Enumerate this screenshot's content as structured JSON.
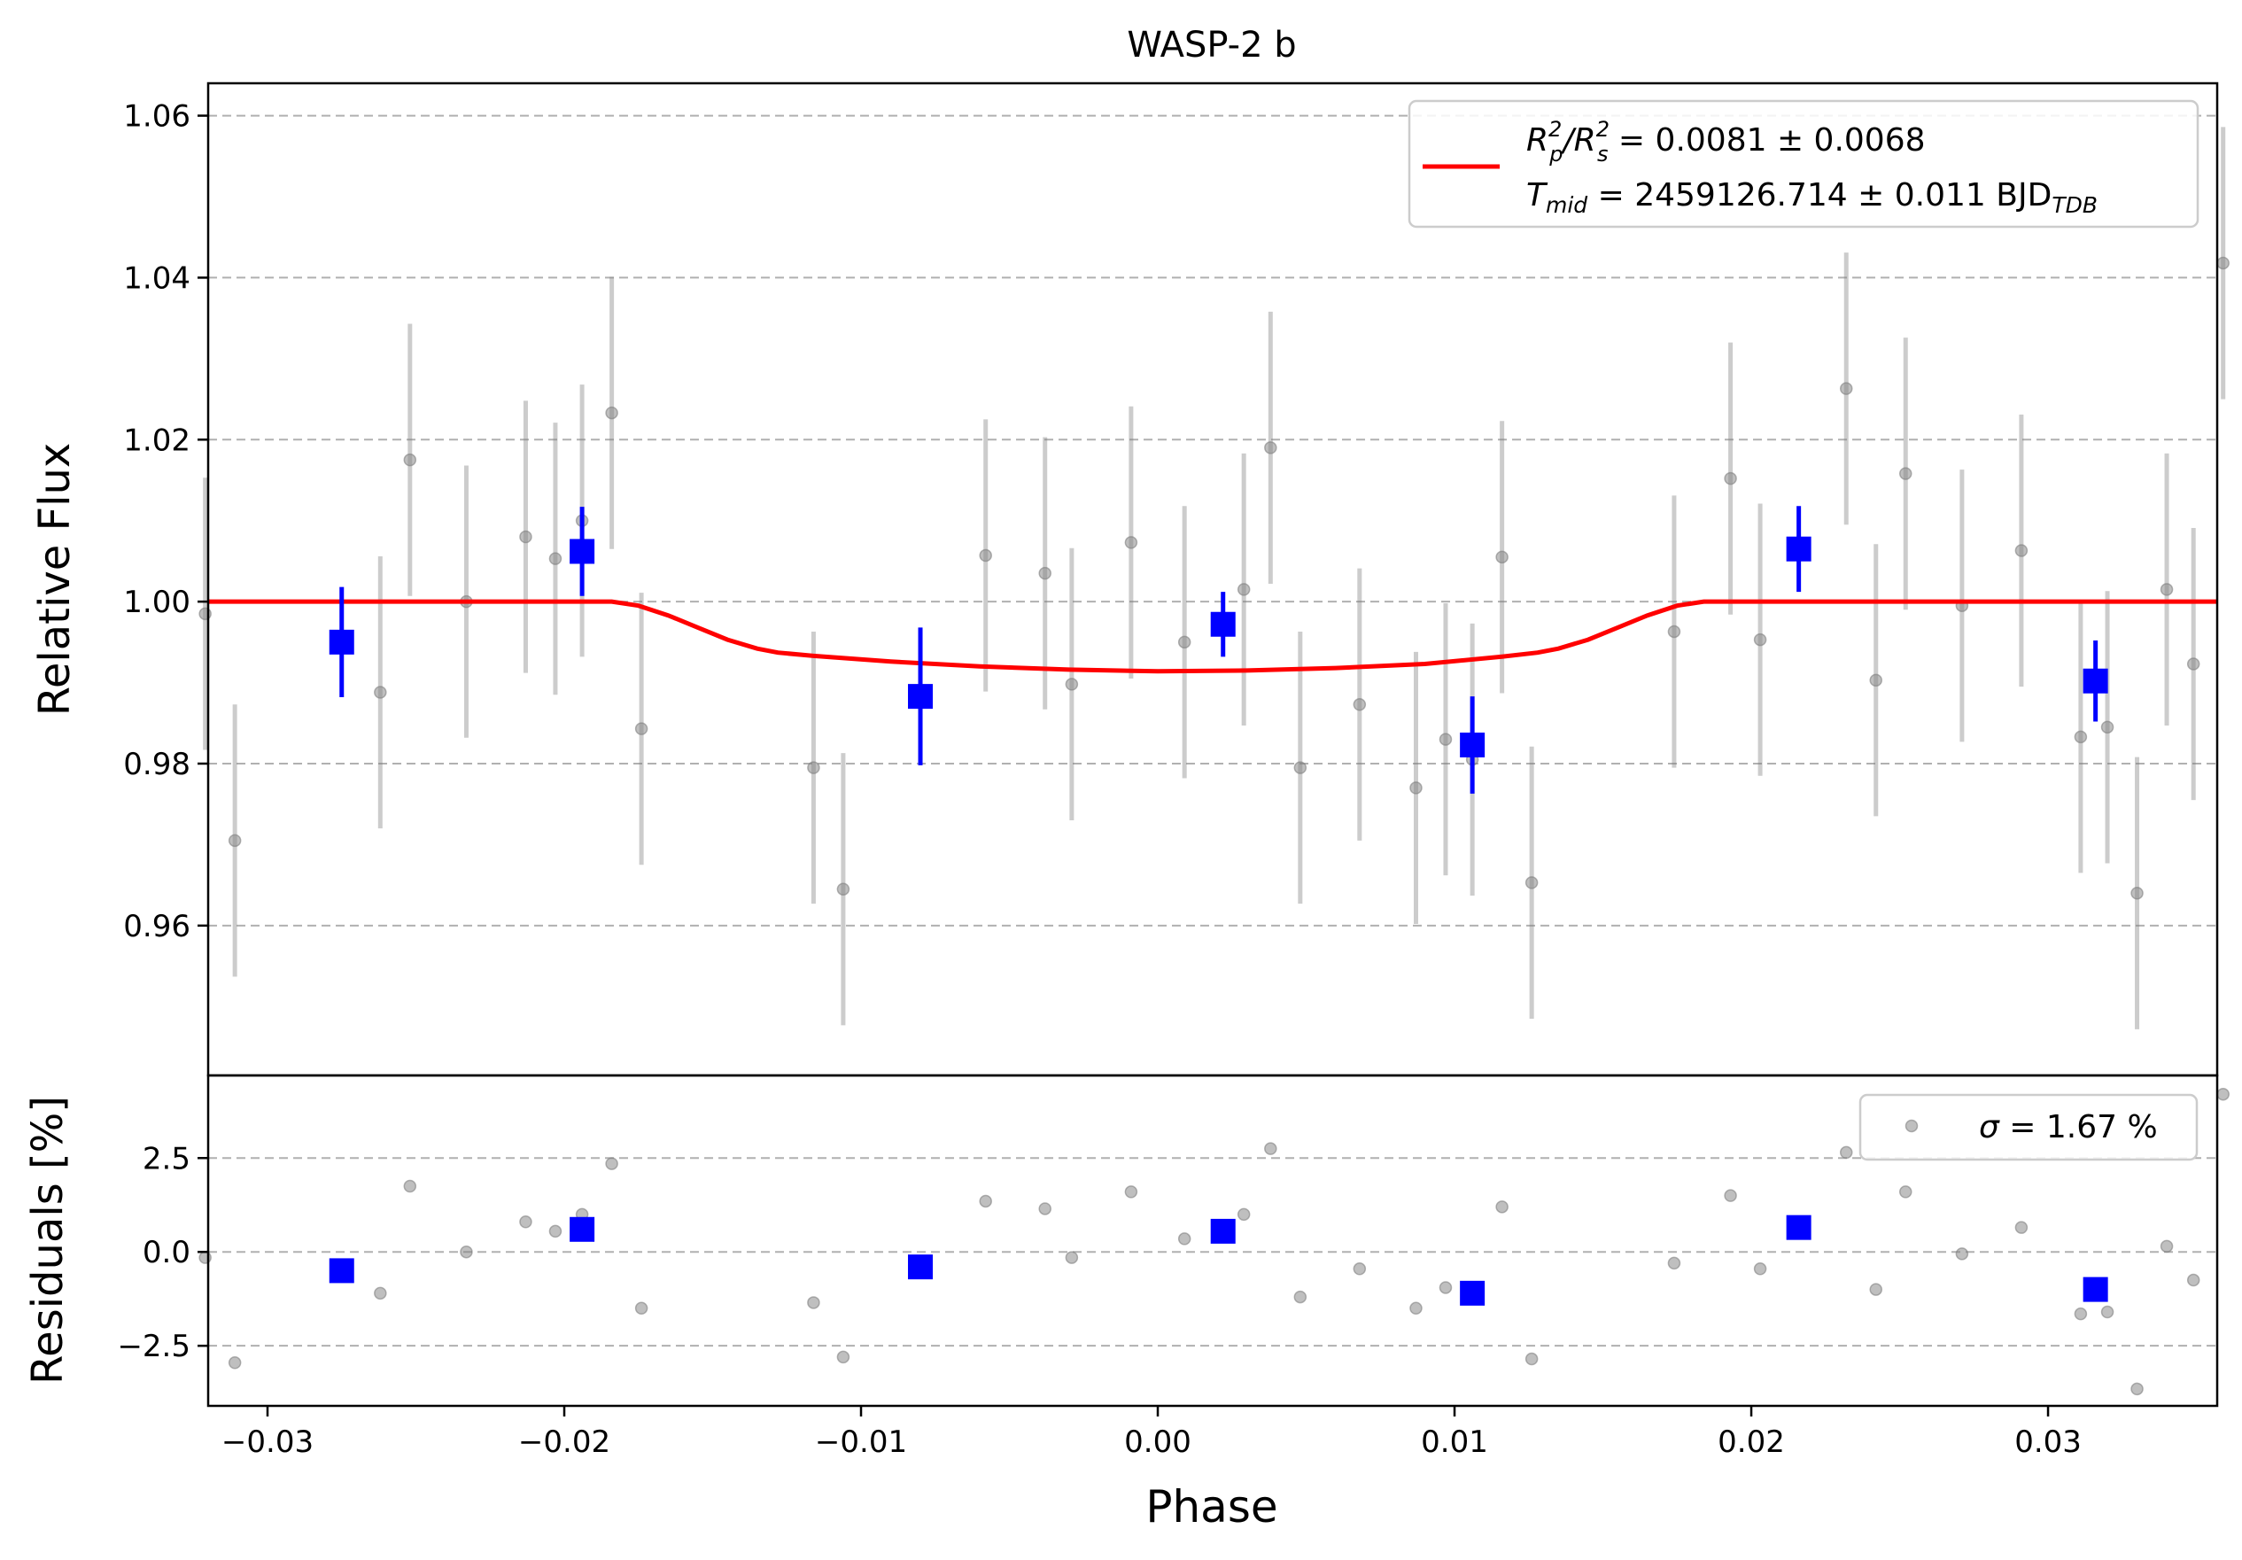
{
  "chart_data": [
    {
      "type": "scatter",
      "title": "WASP-2 b",
      "xlabel": "",
      "ylabel": "Relative Flux",
      "xlim": [
        -0.032,
        0.0357
      ],
      "ylim": [
        0.9415,
        1.064
      ],
      "grid": "horizontal dashed",
      "yticks": [
        0.96,
        0.98,
        1.0,
        1.02,
        1.04,
        1.06
      ],
      "ytick_labels": [
        "0.96",
        "0.98",
        "1.00",
        "1.02",
        "1.04",
        "1.06"
      ],
      "legend": {
        "placement": "top-right",
        "line1_a": "R",
        "line1_b": "/R",
        "line1_c": " = 0.0081 ± 0.0068",
        "line1_sup": "2",
        "line1_sub_p": "p",
        "line1_sub_s": "s",
        "line2_a": "T",
        "line2_sub": "mid",
        "line2_b": " = 2459126.714 ± 0.011 BJD",
        "line2_sub2": "TDB"
      },
      "series": [
        {
          "kind": "raw",
          "color": "#808080",
          "err": 0.0168,
          "x": [
            -0.0321,
            -0.0311,
            -0.0262,
            -0.0252,
            -0.0233,
            -0.0213,
            -0.0203,
            -0.0194,
            -0.0184,
            -0.0174,
            -0.0116,
            -0.0106,
            -0.0058,
            -0.0038,
            -0.0029,
            -0.0009,
            0.0009,
            0.0029,
            0.0038,
            0.0048,
            0.0068,
            0.0087,
            0.0097,
            0.0106,
            0.0116,
            0.0126,
            0.0174,
            0.0193,
            0.0203,
            0.0232,
            0.0242,
            0.0252,
            0.0271,
            0.0291,
            0.0311,
            0.032,
            0.033,
            0.034,
            0.0349,
            0.0359
          ],
          "y": [
            0.9985,
            0.9705,
            0.9888,
            1.0175,
            1.0,
            1.008,
            1.0053,
            1.01,
            1.0233,
            0.9843,
            0.9795,
            0.9645,
            1.0057,
            1.0035,
            0.9898,
            1.0073,
            0.995,
            1.0015,
            1.019,
            0.9795,
            0.9873,
            0.977,
            0.983,
            0.9805,
            1.0055,
            0.9653,
            0.9963,
            1.0152,
            0.9953,
            1.0263,
            0.9903,
            1.0158,
            0.9995,
            1.0063,
            0.9833,
            0.9845,
            0.964,
            1.0015,
            0.9923,
            1.0418
          ]
        },
        {
          "kind": "binned",
          "color": "#0000ff",
          "x": [
            -0.0275,
            -0.0194,
            -0.008,
            0.0022,
            0.0106,
            0.0216,
            0.0316
          ],
          "y": [
            0.995,
            1.0062,
            0.9883,
            0.9972,
            0.9823,
            1.0065,
            0.9902
          ],
          "err": [
            0.0068,
            0.0055,
            0.0085,
            0.004,
            0.006,
            0.0053,
            0.005
          ]
        },
        {
          "kind": "model",
          "color": "#ff0000",
          "x": [
            -0.032,
            -0.0184,
            -0.0175,
            -0.0165,
            -0.0155,
            -0.0145,
            -0.0135,
            -0.0128,
            -0.0116,
            -0.009,
            -0.006,
            -0.003,
            0.0,
            0.003,
            0.006,
            0.009,
            0.0116,
            0.0128,
            0.0135,
            0.0145,
            0.0155,
            0.0165,
            0.0175,
            0.0184,
            0.0357
          ],
          "y": [
            1.0,
            1.0,
            0.9995,
            0.9983,
            0.9968,
            0.9953,
            0.9942,
            0.9937,
            0.9933,
            0.9926,
            0.992,
            0.9916,
            0.9914,
            0.9915,
            0.9918,
            0.9923,
            0.9932,
            0.9937,
            0.9942,
            0.9953,
            0.9968,
            0.9983,
            0.9995,
            1.0,
            1.0
          ]
        }
      ]
    },
    {
      "type": "scatter",
      "title": "",
      "xlabel": "Phase",
      "ylabel": "Residuals [%]",
      "xlim": [
        -0.032,
        0.0357
      ],
      "ylim": [
        -4.1,
        4.7
      ],
      "grid": "horizontal dashed",
      "xticks": [
        -0.03,
        -0.02,
        -0.01,
        0.0,
        0.01,
        0.02,
        0.03
      ],
      "xtick_labels": [
        "−0.03",
        "−0.02",
        "−0.01",
        "0.00",
        "0.01",
        "0.02",
        "0.03"
      ],
      "yticks": [
        -2.5,
        0.0,
        2.5
      ],
      "ytick_labels": [
        "−2.5",
        "0.0",
        "2.5"
      ],
      "legend": {
        "placement": "top-right",
        "sigma_symbol": "σ",
        "text": " = 1.67 %"
      },
      "series": [
        {
          "kind": "raw",
          "color": "#808080",
          "x": [
            -0.0321,
            -0.0311,
            -0.0262,
            -0.0252,
            -0.0233,
            -0.0213,
            -0.0203,
            -0.0194,
            -0.0184,
            -0.0174,
            -0.0116,
            -0.0106,
            -0.0058,
            -0.0038,
            -0.0029,
            -0.0009,
            0.0009,
            0.0029,
            0.0038,
            0.0048,
            0.0068,
            0.0087,
            0.0097,
            0.0116,
            0.0126,
            0.0174,
            0.0193,
            0.0203,
            0.0232,
            0.0242,
            0.0252,
            0.0271,
            0.0291,
            0.0311,
            0.032,
            0.033,
            0.034,
            0.0349,
            0.0359
          ],
          "y": [
            -0.15,
            -2.95,
            -1.1,
            1.75,
            0.0,
            0.8,
            0.55,
            1.0,
            2.35,
            -1.5,
            -1.35,
            -2.8,
            1.35,
            1.15,
            -0.15,
            1.6,
            0.35,
            1.0,
            2.75,
            -1.2,
            -0.45,
            -1.5,
            -0.95,
            1.2,
            -2.85,
            -0.3,
            1.5,
            -0.45,
            2.65,
            -1.0,
            1.6,
            -0.05,
            0.65,
            -1.65,
            -1.6,
            -3.65,
            0.15,
            -0.75,
            4.2
          ]
        },
        {
          "kind": "binned",
          "color": "#0000ff",
          "x": [
            -0.0275,
            -0.0194,
            -0.008,
            0.0022,
            0.0106,
            0.0216,
            0.0316
          ],
          "y": [
            -0.5,
            0.6,
            -0.4,
            0.55,
            -1.1,
            0.65,
            -1.0
          ]
        }
      ]
    }
  ]
}
